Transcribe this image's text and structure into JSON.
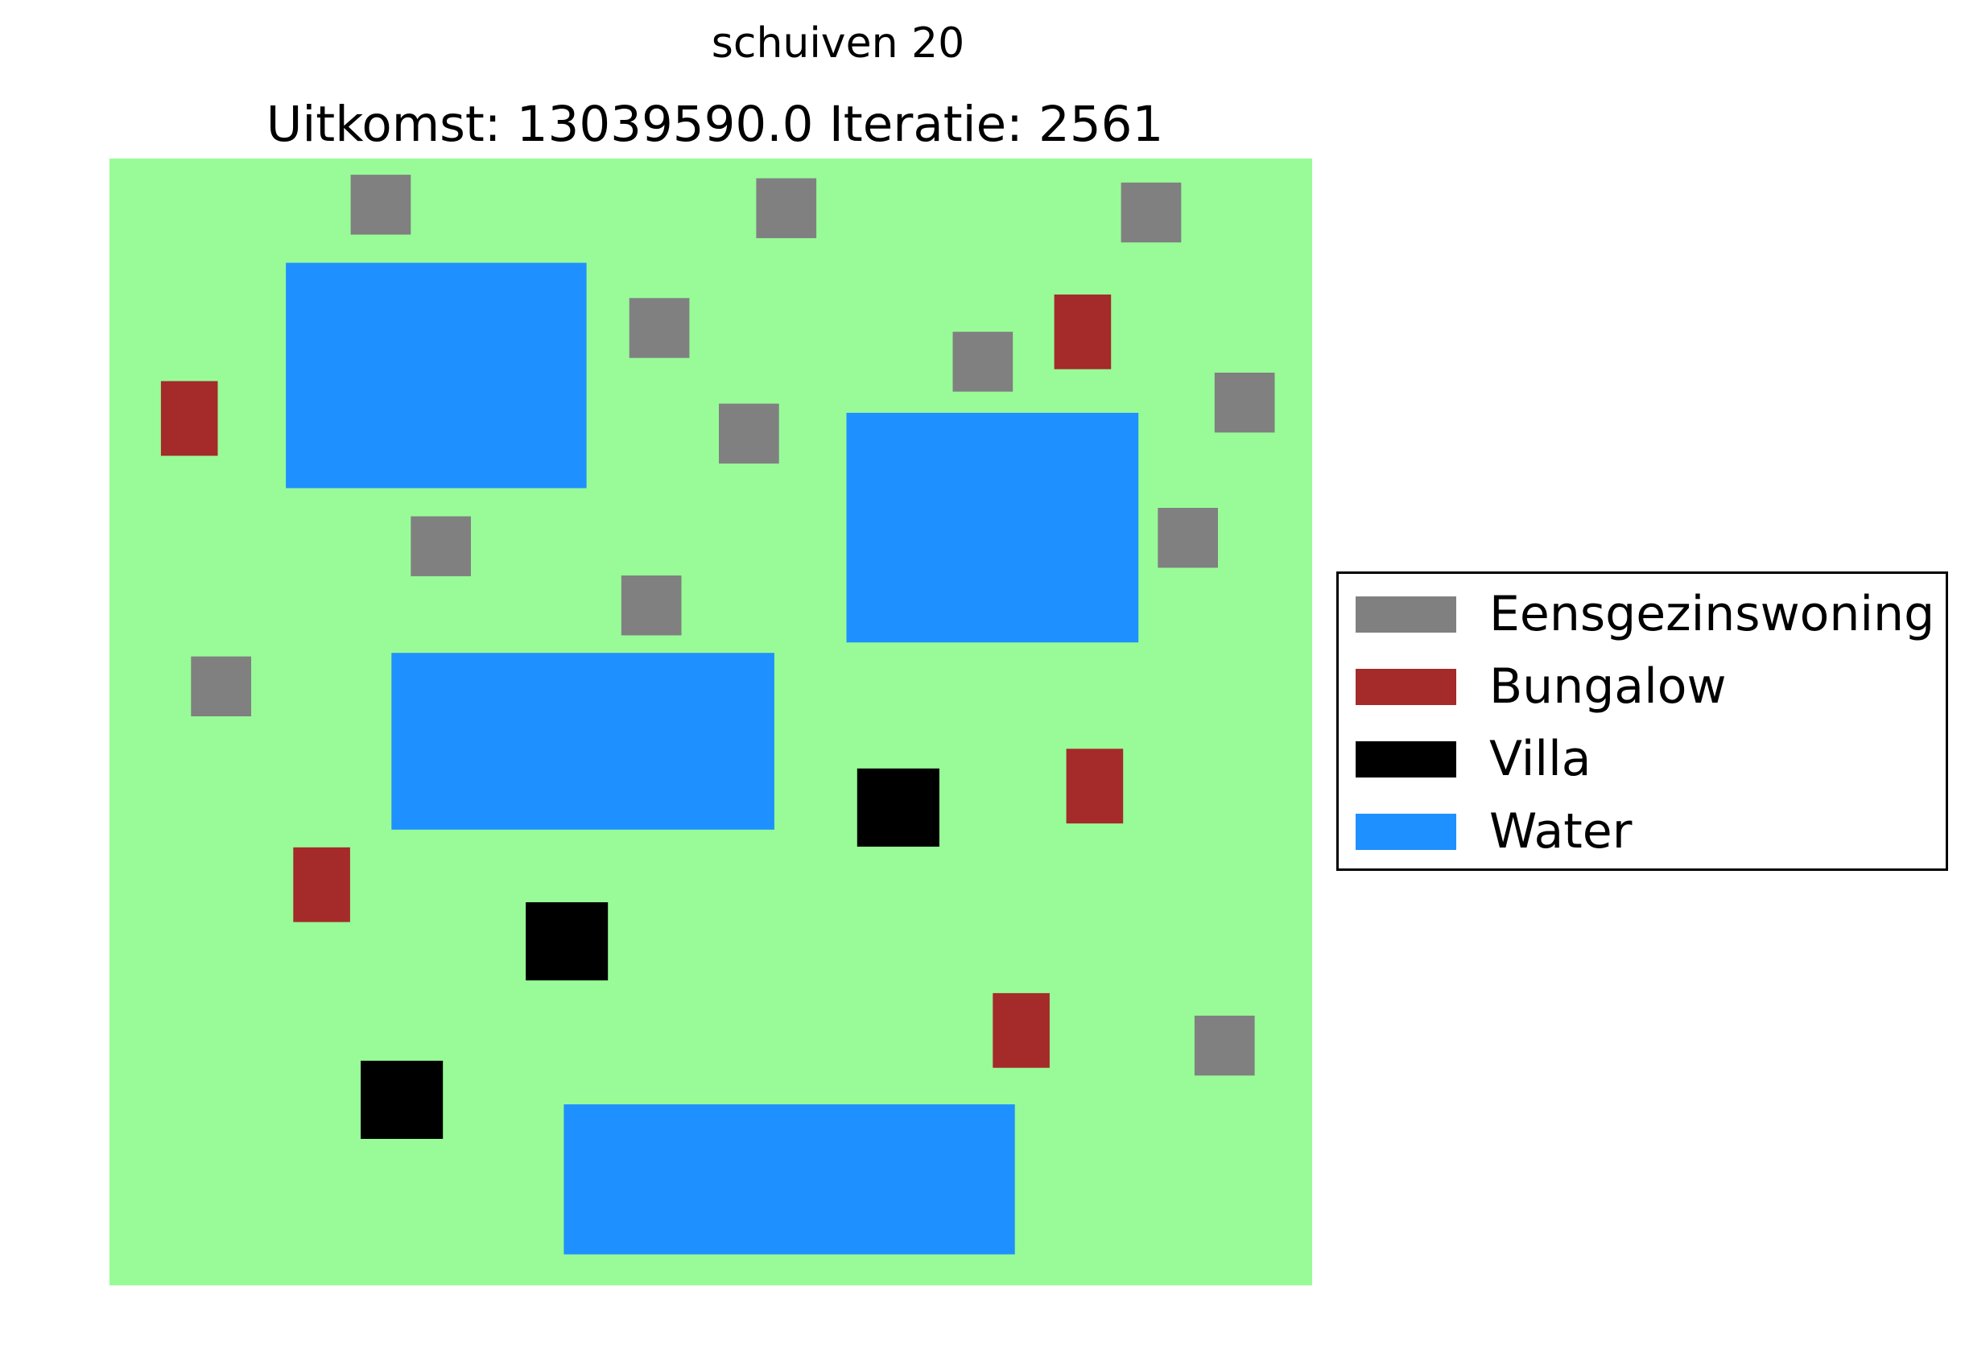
{
  "figure": {
    "subtitle": "schuiven 20",
    "title": "Uitkomst: 13039590.0 Iteratie: 2561"
  },
  "chart_data": {
    "type": "map",
    "xlim": [
      0,
      180
    ],
    "ylim": [
      0,
      160
    ],
    "grid": false,
    "axes_visible": false,
    "legend_position": "right",
    "background": {
      "name": "grond",
      "color": "#98fb98"
    },
    "categories": {
      "Eensgezinswoning": "#808080",
      "Bungalow": "#a52a2a",
      "Villa": "#000000",
      "Water": "#1e90ff"
    },
    "legend": [
      {
        "label": "Eensgezinswoning",
        "color": "#808080"
      },
      {
        "label": "Bungalow",
        "color": "#a52a2a"
      },
      {
        "label": "Villa",
        "color": "#000000"
      },
      {
        "label": "Water",
        "color": "#1e90ff"
      }
    ],
    "rectangles": [
      {
        "type": "Water",
        "x": 26.4,
        "y": 113.2,
        "w": 45,
        "h": 32
      },
      {
        "type": "Water",
        "x": 110.3,
        "y": 91.3,
        "w": 43.7,
        "h": 32.6
      },
      {
        "type": "Water",
        "x": 42.2,
        "y": 64.7,
        "w": 57.3,
        "h": 25.1
      },
      {
        "type": "Water",
        "x": 68.0,
        "y": 4.4,
        "w": 67.5,
        "h": 21.3
      },
      {
        "type": "Eensgezinswoning",
        "x": 36.1,
        "y": 149.2,
        "w": 9,
        "h": 8.5
      },
      {
        "type": "Eensgezinswoning",
        "x": 96.8,
        "y": 148.7,
        "w": 9,
        "h": 8.5
      },
      {
        "type": "Eensgezinswoning",
        "x": 151.4,
        "y": 148.1,
        "w": 9,
        "h": 8.5
      },
      {
        "type": "Eensgezinswoning",
        "x": 77.8,
        "y": 131.7,
        "w": 9,
        "h": 8.5
      },
      {
        "type": "Eensgezinswoning",
        "x": 126.2,
        "y": 126.9,
        "w": 9,
        "h": 8.5
      },
      {
        "type": "Eensgezinswoning",
        "x": 165.4,
        "y": 121.1,
        "w": 9,
        "h": 8.5
      },
      {
        "type": "Eensgezinswoning",
        "x": 91.2,
        "y": 116.7,
        "w": 9,
        "h": 8.5
      },
      {
        "type": "Eensgezinswoning",
        "x": 45.1,
        "y": 100.7,
        "w": 9,
        "h": 8.5
      },
      {
        "type": "Eensgezinswoning",
        "x": 156.9,
        "y": 101.9,
        "w": 9,
        "h": 8.5
      },
      {
        "type": "Eensgezinswoning",
        "x": 76.6,
        "y": 92.3,
        "w": 9,
        "h": 8.5
      },
      {
        "type": "Eensgezinswoning",
        "x": 12.2,
        "y": 80.8,
        "w": 9,
        "h": 8.5
      },
      {
        "type": "Eensgezinswoning",
        "x": 162.4,
        "y": 29.8,
        "w": 9,
        "h": 8.5
      },
      {
        "type": "Bungalow",
        "x": 7.7,
        "y": 117.8,
        "w": 8.5,
        "h": 10.6
      },
      {
        "type": "Bungalow",
        "x": 141.4,
        "y": 130.1,
        "w": 8.5,
        "h": 10.6
      },
      {
        "type": "Bungalow",
        "x": 143.2,
        "y": 65.6,
        "w": 8.5,
        "h": 10.6
      },
      {
        "type": "Bungalow",
        "x": 27.5,
        "y": 51.6,
        "w": 8.5,
        "h": 10.6
      },
      {
        "type": "Bungalow",
        "x": 132.2,
        "y": 30.9,
        "w": 8.5,
        "h": 10.6
      },
      {
        "type": "Villa",
        "x": 111.9,
        "y": 62.3,
        "w": 12.3,
        "h": 11.1
      },
      {
        "type": "Villa",
        "x": 62.3,
        "y": 43.3,
        "w": 12.3,
        "h": 11.1
      },
      {
        "type": "Villa",
        "x": 37.6,
        "y": 20.8,
        "w": 12.3,
        "h": 11.1
      }
    ]
  }
}
